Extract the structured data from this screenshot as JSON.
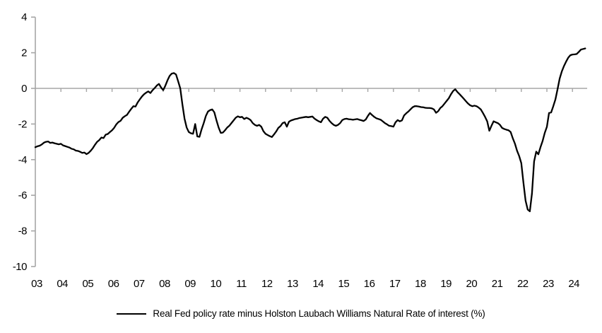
{
  "chart_data": {
    "type": "line",
    "title": "",
    "xlabel": "",
    "ylabel": "",
    "ylim": [
      -10,
      4
    ],
    "y_ticks": [
      4,
      2,
      0,
      -2,
      -4,
      -6,
      -8,
      -10
    ],
    "x_tick_labels": [
      "03",
      "04",
      "05",
      "06",
      "07",
      "08",
      "09",
      "10",
      "11",
      "12",
      "13",
      "14",
      "15",
      "16",
      "17",
      "18",
      "19",
      "20",
      "21",
      "22",
      "23",
      "24"
    ],
    "x_year_start": 2003,
    "x_step_months": 1,
    "grid": false,
    "zero_line": true,
    "legend_position": "bottom",
    "axis_color": "#a6a6a6",
    "series": [
      {
        "name": "Real Fed policy rate minus Holston Laubach Williams Natural Rate of interest (%)",
        "color": "#000000",
        "values": [
          -3.3,
          -3.25,
          -3.22,
          -3.15,
          -3.05,
          -3.0,
          -2.98,
          -3.06,
          -3.04,
          -3.08,
          -3.11,
          -3.14,
          -3.11,
          -3.2,
          -3.24,
          -3.28,
          -3.32,
          -3.39,
          -3.42,
          -3.49,
          -3.51,
          -3.56,
          -3.62,
          -3.6,
          -3.69,
          -3.62,
          -3.5,
          -3.35,
          -3.16,
          -3.0,
          -2.9,
          -2.76,
          -2.79,
          -2.6,
          -2.56,
          -2.45,
          -2.35,
          -2.21,
          -2.02,
          -1.89,
          -1.82,
          -1.65,
          -1.56,
          -1.49,
          -1.31,
          -1.15,
          -1.0,
          -1.02,
          -0.79,
          -0.62,
          -0.46,
          -0.33,
          -0.24,
          -0.17,
          -0.26,
          -0.1,
          0.02,
          0.16,
          0.25,
          0.05,
          -0.1,
          0.15,
          0.45,
          0.7,
          0.83,
          0.86,
          0.78,
          0.4,
          0.0,
          -0.9,
          -1.7,
          -2.2,
          -2.45,
          -2.52,
          -2.55,
          -2.0,
          -2.7,
          -2.72,
          -2.3,
          -1.95,
          -1.55,
          -1.3,
          -1.22,
          -1.18,
          -1.35,
          -1.8,
          -2.2,
          -2.5,
          -2.48,
          -2.35,
          -2.2,
          -2.1,
          -1.95,
          -1.8,
          -1.65,
          -1.57,
          -1.62,
          -1.6,
          -1.72,
          -1.65,
          -1.7,
          -1.78,
          -1.95,
          -2.05,
          -2.1,
          -2.05,
          -2.15,
          -2.4,
          -2.55,
          -2.62,
          -2.68,
          -2.73,
          -2.58,
          -2.42,
          -2.22,
          -2.12,
          -1.95,
          -1.9,
          -2.15,
          -1.87,
          -1.8,
          -1.76,
          -1.72,
          -1.7,
          -1.66,
          -1.64,
          -1.62,
          -1.6,
          -1.62,
          -1.6,
          -1.58,
          -1.7,
          -1.78,
          -1.85,
          -1.9,
          -1.7,
          -1.6,
          -1.65,
          -1.82,
          -1.95,
          -2.05,
          -2.1,
          -2.05,
          -1.95,
          -1.78,
          -1.72,
          -1.7,
          -1.73,
          -1.74,
          -1.76,
          -1.74,
          -1.72,
          -1.76,
          -1.79,
          -1.83,
          -1.75,
          -1.55,
          -1.38,
          -1.5,
          -1.6,
          -1.68,
          -1.72,
          -1.76,
          -1.85,
          -1.95,
          -2.02,
          -2.1,
          -2.12,
          -2.15,
          -1.9,
          -1.78,
          -1.85,
          -1.8,
          -1.52,
          -1.4,
          -1.3,
          -1.18,
          -1.06,
          -1.0,
          -1.0,
          -1.02,
          -1.05,
          -1.06,
          -1.09,
          -1.1,
          -1.1,
          -1.12,
          -1.18,
          -1.37,
          -1.28,
          -1.1,
          -1.0,
          -0.85,
          -0.7,
          -0.55,
          -0.33,
          -0.15,
          -0.05,
          -0.2,
          -0.32,
          -0.45,
          -0.58,
          -0.72,
          -0.85,
          -0.95,
          -1.0,
          -0.97,
          -1.0,
          -1.08,
          -1.18,
          -1.38,
          -1.6,
          -1.85,
          -2.38,
          -2.1,
          -1.85,
          -1.9,
          -1.95,
          -2.05,
          -2.22,
          -2.28,
          -2.32,
          -2.35,
          -2.45,
          -2.8,
          -3.1,
          -3.5,
          -3.8,
          -4.2,
          -5.3,
          -6.3,
          -6.8,
          -6.9,
          -5.9,
          -4.1,
          -3.55,
          -3.7,
          -3.3,
          -2.95,
          -2.5,
          -2.16,
          -1.38,
          -1.35,
          -1.0,
          -0.62,
          -0.05,
          0.55,
          0.95,
          1.25,
          1.5,
          1.72,
          1.86,
          1.9,
          1.91,
          1.93,
          2.05,
          2.18,
          2.21,
          2.24
        ]
      }
    ]
  }
}
